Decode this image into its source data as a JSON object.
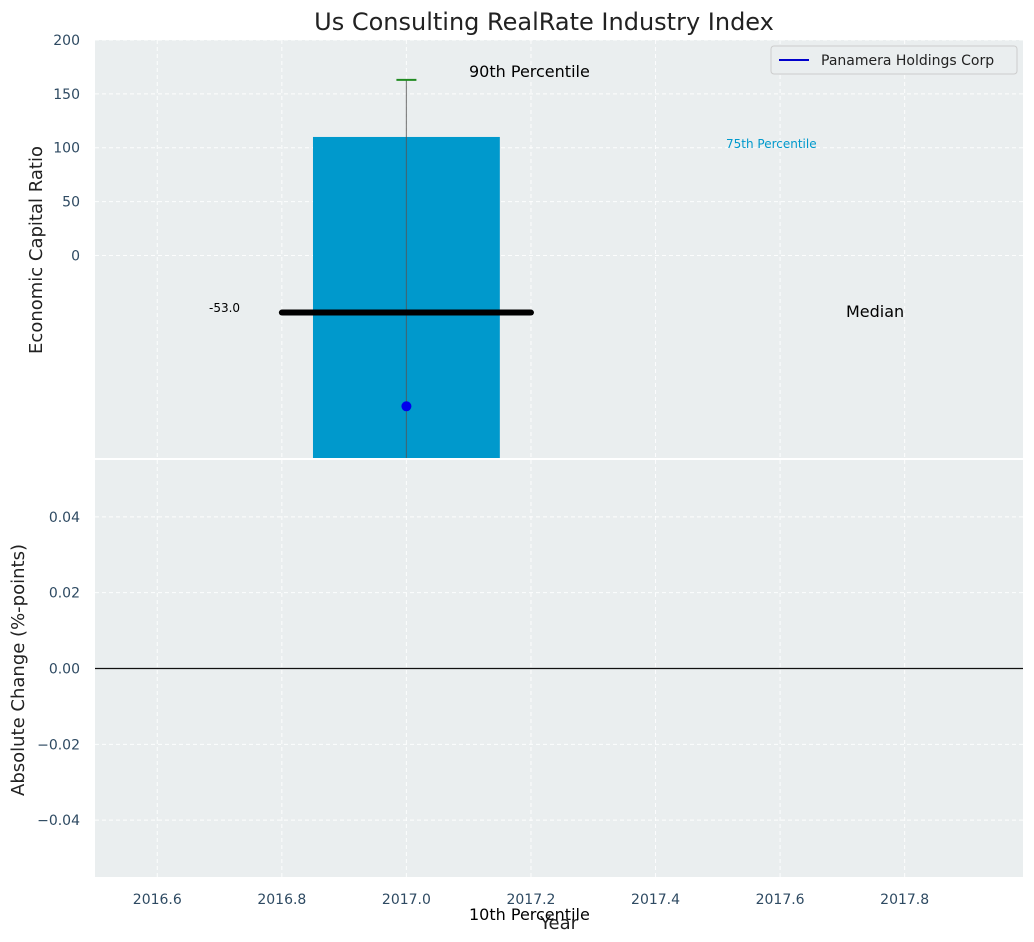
{
  "chart_data": [
    {
      "panel": "top",
      "type": "bar",
      "title": "Us Consulting RealRate Industry Index",
      "ylabel": "Economic Capital Ratio",
      "ylim": [
        -188,
        200
      ],
      "y_ticks": [
        "0",
        "50",
        "100",
        "150",
        "200"
      ],
      "y_tick_values": [
        0,
        50,
        100,
        150,
        200
      ],
      "x_data_range": [
        2016.5,
        2017.99
      ],
      "grid": true,
      "bar": {
        "x": 2017.0,
        "width": 0.3,
        "from": -188,
        "to": 110,
        "color": "#0099cc"
      },
      "whisker": {
        "x": 2017.0,
        "low": -188,
        "high": 163,
        "cap_color": "#228b22"
      },
      "median": {
        "value": -53.0,
        "x_from": 2016.8,
        "x_to": 2017.2,
        "label": "-53.0"
      },
      "company_point": {
        "x": 2017.0,
        "y": -140,
        "color": "#0000ee"
      },
      "annotations": {
        "p90": "90th Percentile",
        "p75": "75th Percentile",
        "median": "Median",
        "p10": "10th Percentile"
      },
      "legend": {
        "position": "top-right",
        "entries": [
          {
            "label": "Panamera Holdings Corp",
            "color": "#0000cc"
          }
        ]
      }
    },
    {
      "panel": "bottom",
      "type": "line",
      "ylabel": "Absolute Change (%-points)",
      "xlabel": "Year",
      "ylim": [
        -0.055,
        0.055
      ],
      "y_ticks": [
        "0.04",
        "0.02",
        "0.00",
        "−0.02",
        "−0.04"
      ],
      "y_tick_values": [
        0.04,
        0.02,
        0.0,
        -0.02,
        -0.04
      ],
      "x_ticks": [
        "2016.6",
        "2016.8",
        "2017.0",
        "2017.2",
        "2017.4",
        "2017.6",
        "2017.8"
      ],
      "x_tick_values": [
        2016.6,
        2016.8,
        2017.0,
        2017.2,
        2017.4,
        2017.6,
        2017.8
      ],
      "xlim": [
        2016.5,
        2017.99
      ],
      "zero_line": 0.0,
      "grid": true
    }
  ]
}
